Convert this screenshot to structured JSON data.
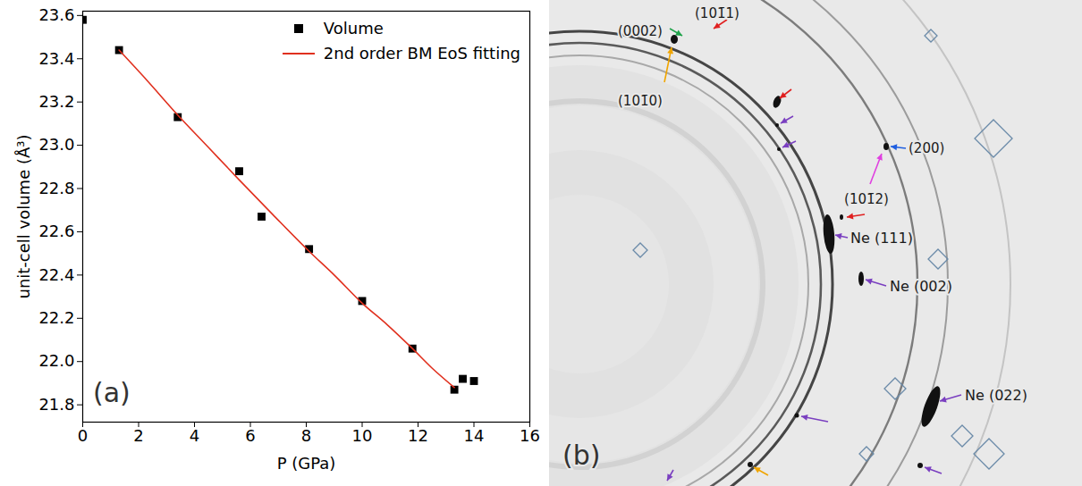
{
  "chart_data": {
    "type": "scatter",
    "panel_label": "(a)",
    "x_label": "P (GPa)",
    "y_label": "unit-cell volume (Å³)",
    "xlim": [
      0,
      16
    ],
    "xticks": [
      0,
      2,
      4,
      6,
      8,
      10,
      12,
      14,
      16
    ],
    "ylim": [
      21.72,
      23.62
    ],
    "yticks": [
      21.8,
      {
        "value": 22,
        "label": "22.0"
      },
      22.2,
      22.4,
      22.6,
      22.8,
      {
        "value": 23,
        "label": "23.0"
      },
      23.2,
      23.4,
      23.6
    ],
    "legend": "top-right",
    "series": [
      {
        "name": "Volume",
        "type": "scatter",
        "marker": "square",
        "color": "#000000",
        "x": [
          0,
          1.3,
          3.4,
          5.6,
          6.4,
          8.1,
          10,
          11.8,
          13.3,
          13.6,
          14.0
        ],
        "values": [
          23.58,
          23.44,
          23.13,
          22.88,
          22.67,
          22.52,
          22.28,
          22.06,
          21.87,
          21.92,
          21.91
        ]
      },
      {
        "name": "2nd order BM EoS fitting",
        "type": "line",
        "line_style": "solid",
        "color": "#e0301e",
        "x": [
          1.3,
          2.3,
          3.4,
          4.5,
          5.6,
          6.8,
          8.1,
          9.0,
          10,
          10.9,
          11.8,
          12.5,
          13.3
        ],
        "values": [
          23.44,
          23.3,
          23.14,
          22.99,
          22.84,
          22.68,
          22.51,
          22.4,
          22.27,
          22.17,
          22.06,
          21.97,
          21.88
        ]
      }
    ]
  },
  "image": {
    "panel_label": "(b)",
    "peak_labels": [
      "(0002)",
      "(101̄1)",
      "(101̄0)",
      "(200)",
      "(101̄2)",
      "Ne (111)",
      "Ne (002)",
      "Ne (022)"
    ]
  }
}
